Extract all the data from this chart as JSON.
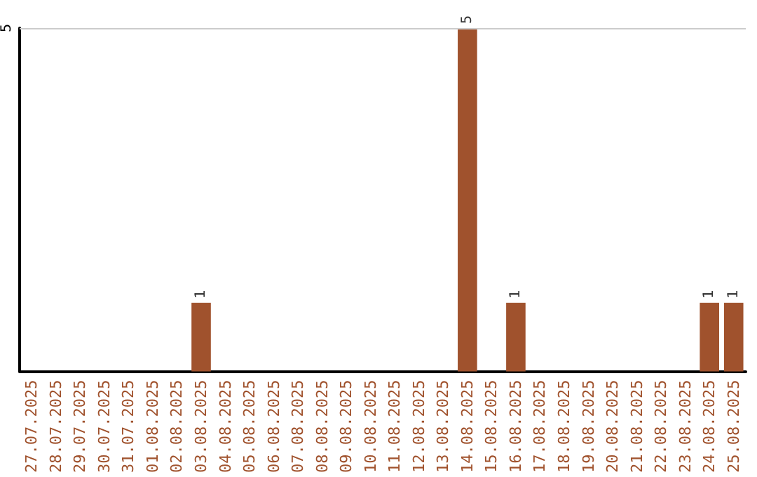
{
  "chart_data": {
    "type": "bar",
    "categories": [
      "27.07.2025",
      "28.07.2025",
      "29.07.2025",
      "30.07.2025",
      "31.07.2025",
      "01.08.2025",
      "02.08.2025",
      "03.08.2025",
      "04.08.2025",
      "05.08.2025",
      "06.08.2025",
      "07.08.2025",
      "08.08.2025",
      "09.08.2025",
      "10.08.2025",
      "11.08.2025",
      "12.08.2025",
      "13.08.2025",
      "14.08.2025",
      "15.08.2025",
      "16.08.2025",
      "17.08.2025",
      "18.08.2025",
      "19.08.2025",
      "20.08.2025",
      "21.08.2025",
      "22.08.2025",
      "23.08.2025",
      "24.08.2025",
      "25.08.2025"
    ],
    "values": [
      0,
      0,
      0,
      0,
      0,
      0,
      0,
      1,
      0,
      0,
      0,
      0,
      0,
      0,
      0,
      0,
      0,
      0,
      5,
      0,
      1,
      0,
      0,
      0,
      0,
      0,
      0,
      0,
      1,
      1
    ],
    "value_labels": [
      null,
      null,
      null,
      null,
      null,
      null,
      null,
      "1",
      null,
      null,
      null,
      null,
      null,
      null,
      null,
      null,
      null,
      null,
      "5",
      null,
      "1",
      null,
      null,
      null,
      null,
      null,
      null,
      null,
      "1",
      "1"
    ],
    "color": "#a0522d",
    "ylim": [
      0,
      5
    ],
    "yticks": [
      5
    ],
    "ref_lines": [
      {
        "axis": "y",
        "value": 5,
        "color": "#cccccc"
      }
    ]
  }
}
